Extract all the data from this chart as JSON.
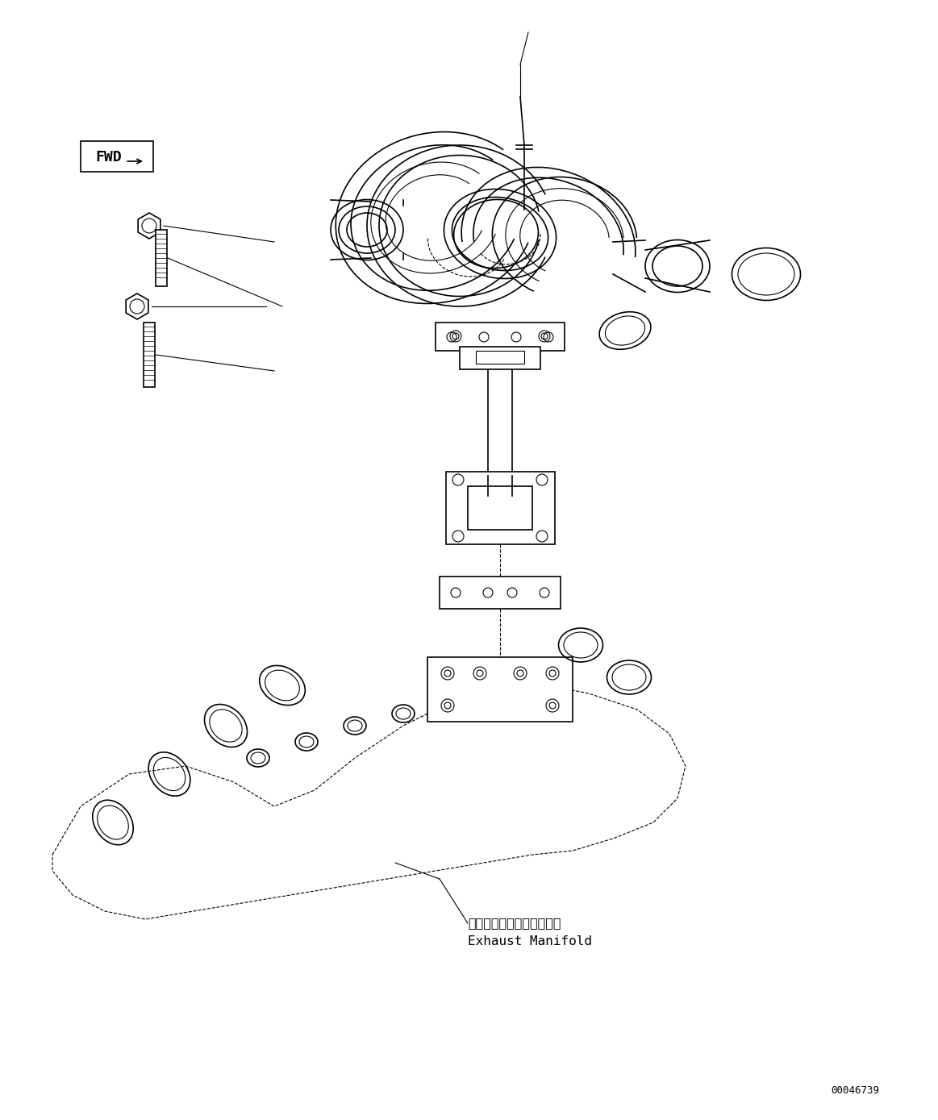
{
  "bg_color": "#ffffff",
  "line_color": "#000000",
  "dashed_color": "#000000",
  "part_number": "00046739",
  "label_japanese": "エキゾーストマニホールド",
  "label_english": "Exhaust Manifold",
  "fwd_label": "FWD",
  "fig_width": 11.63,
  "fig_height": 13.89,
  "dpi": 100
}
